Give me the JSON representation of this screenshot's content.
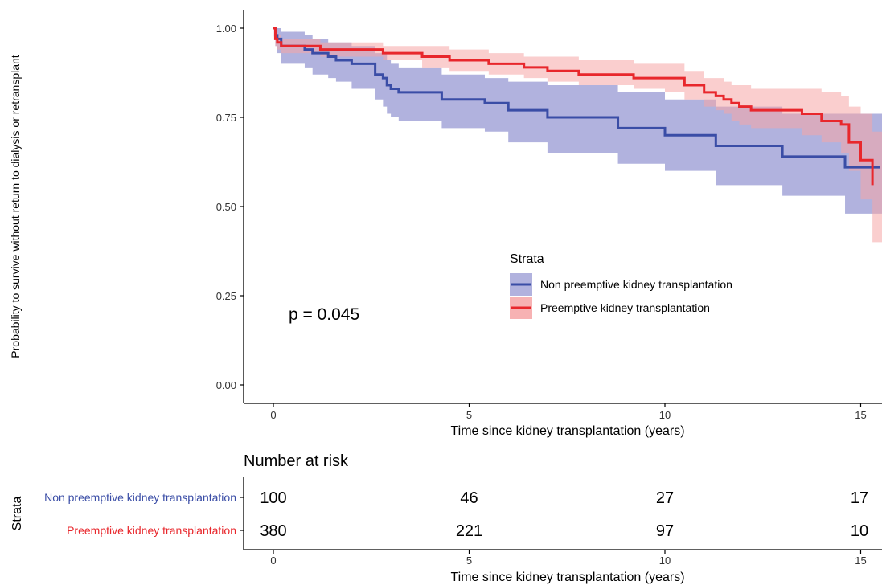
{
  "chart_data": {
    "type": "line",
    "subtype": "kaplan-meier survival curve with confidence bands",
    "xlabel": "Time since kidney transplantation (years)",
    "ylabel": "Probability to survive without return to dialysis or retransplant",
    "xlim": [
      -0.8,
      15.5
    ],
    "ylim": [
      -0.05,
      1.05
    ],
    "x_ticks": [
      0,
      5,
      10,
      15
    ],
    "x_tick_labels": [
      "0",
      "5",
      "10",
      "15"
    ],
    "y_ticks": [
      0,
      0.25,
      0.5,
      0.75,
      1.0
    ],
    "y_tick_labels": [
      "0.00",
      "0.25",
      "0.50",
      "0.75",
      "1.00"
    ],
    "grid": false,
    "annotation": "p = 0.045",
    "legend": {
      "title": "Strata",
      "placement": "center-right"
    },
    "series": [
      {
        "name": "Non preemptive kidney transplantation",
        "color": "#3A4DA6",
        "band_color": "#7D7FC8",
        "x": [
          0,
          0.05,
          0.1,
          0.2,
          0.5,
          0.8,
          1.0,
          1.2,
          1.4,
          1.6,
          2.0,
          2.6,
          2.8,
          2.9,
          3.0,
          3.2,
          3.6,
          4.3,
          5.4,
          6.0,
          7.0,
          8.0,
          8.8,
          9.5,
          10.0,
          10.7,
          11.3,
          11.8,
          12.0,
          12.5,
          13.0,
          13.5,
          14.0,
          14.6,
          15.5
        ],
        "y": [
          1.0,
          0.98,
          0.97,
          0.95,
          0.95,
          0.94,
          0.93,
          0.93,
          0.92,
          0.91,
          0.9,
          0.87,
          0.86,
          0.84,
          0.83,
          0.82,
          0.82,
          0.8,
          0.79,
          0.77,
          0.75,
          0.75,
          0.72,
          0.72,
          0.7,
          0.7,
          0.67,
          0.67,
          0.67,
          0.67,
          0.64,
          0.64,
          0.64,
          0.61,
          0.61
        ],
        "lower": [
          1.0,
          0.95,
          0.93,
          0.9,
          0.9,
          0.89,
          0.87,
          0.87,
          0.86,
          0.85,
          0.83,
          0.8,
          0.78,
          0.76,
          0.75,
          0.74,
          0.74,
          0.72,
          0.71,
          0.68,
          0.65,
          0.65,
          0.62,
          0.62,
          0.6,
          0.6,
          0.56,
          0.56,
          0.56,
          0.56,
          0.53,
          0.53,
          0.53,
          0.48,
          0.48
        ],
        "upper": [
          1.0,
          1.0,
          1.0,
          0.99,
          0.99,
          0.98,
          0.97,
          0.97,
          0.96,
          0.96,
          0.95,
          0.93,
          0.93,
          0.91,
          0.9,
          0.89,
          0.89,
          0.87,
          0.86,
          0.85,
          0.84,
          0.84,
          0.82,
          0.82,
          0.8,
          0.8,
          0.78,
          0.78,
          0.78,
          0.78,
          0.76,
          0.76,
          0.76,
          0.76,
          0.76
        ]
      },
      {
        "name": "Preemptive kidney transplantation",
        "color": "#E8272C",
        "band_color": "#F6A5A6",
        "x": [
          0,
          0.05,
          0.1,
          0.2,
          0.4,
          0.8,
          1.2,
          1.7,
          2.3,
          2.8,
          3.2,
          3.8,
          4.5,
          5.0,
          5.5,
          6.4,
          7.0,
          7.8,
          8.5,
          9.2,
          10.0,
          10.5,
          11.0,
          11.3,
          11.5,
          11.7,
          11.9,
          12.2,
          12.5,
          13.0,
          13.5,
          14.0,
          14.5,
          14.7,
          15.0,
          15.3
        ],
        "y": [
          1.0,
          0.97,
          0.96,
          0.95,
          0.95,
          0.95,
          0.94,
          0.94,
          0.94,
          0.93,
          0.93,
          0.92,
          0.91,
          0.91,
          0.9,
          0.89,
          0.88,
          0.87,
          0.87,
          0.86,
          0.86,
          0.84,
          0.82,
          0.81,
          0.8,
          0.79,
          0.78,
          0.77,
          0.77,
          0.77,
          0.76,
          0.74,
          0.73,
          0.68,
          0.63,
          0.56
        ],
        "lower": [
          1.0,
          0.95,
          0.94,
          0.93,
          0.93,
          0.93,
          0.92,
          0.92,
          0.92,
          0.91,
          0.91,
          0.89,
          0.88,
          0.88,
          0.87,
          0.86,
          0.85,
          0.84,
          0.84,
          0.83,
          0.82,
          0.8,
          0.78,
          0.77,
          0.76,
          0.74,
          0.73,
          0.72,
          0.72,
          0.72,
          0.7,
          0.68,
          0.65,
          0.6,
          0.52,
          0.4
        ],
        "upper": [
          1.0,
          0.99,
          0.98,
          0.97,
          0.97,
          0.97,
          0.96,
          0.96,
          0.96,
          0.95,
          0.95,
          0.95,
          0.94,
          0.94,
          0.93,
          0.92,
          0.92,
          0.91,
          0.91,
          0.9,
          0.9,
          0.88,
          0.86,
          0.86,
          0.85,
          0.84,
          0.84,
          0.83,
          0.83,
          0.83,
          0.83,
          0.82,
          0.81,
          0.78,
          0.76,
          0.71
        ]
      }
    ],
    "risk_table": {
      "title": "Number at risk",
      "strata_label": "Strata",
      "xlabel": "Time since kidney transplantation (years)",
      "times": [
        0,
        5,
        10,
        15
      ],
      "time_labels": [
        "0",
        "5",
        "10",
        "15"
      ],
      "rows": [
        {
          "name": "Non preemptive kidney transplantation",
          "color": "#3A4DA6",
          "counts": [
            "100",
            "46",
            "27",
            "17"
          ]
        },
        {
          "name": "Preemptive kidney transplantation",
          "color": "#E8272C",
          "counts": [
            "380",
            "221",
            "97",
            "10"
          ]
        }
      ]
    }
  }
}
